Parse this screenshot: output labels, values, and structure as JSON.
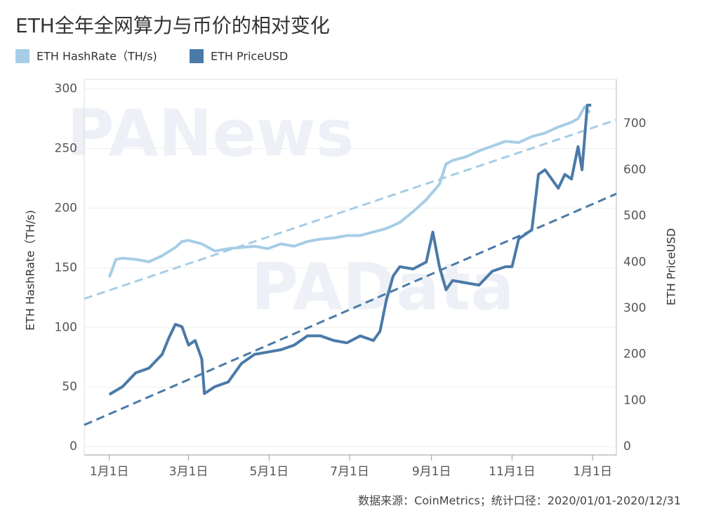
{
  "chart_data": {
    "type": "line",
    "title": "ETH全年全网算力与币价的相对变化",
    "source": "数据来源：CoinMetrics；统计口径：2020/01/01-2020/12/31",
    "watermarks": [
      "PANews",
      "PAData"
    ],
    "y_label": "ETH HashRate（TH/s)",
    "y2_label": "ETH PriceUSD",
    "xlim": [
      -19,
      384
    ],
    "xticks": [
      {
        "value": 0,
        "label": "1月1日"
      },
      {
        "value": 60,
        "label": "3月1日"
      },
      {
        "value": 121,
        "label": "5月1日"
      },
      {
        "value": 182,
        "label": "7月1日"
      },
      {
        "value": 244,
        "label": "9月1日"
      },
      {
        "value": 305,
        "label": "11月1日"
      },
      {
        "value": 366,
        "label": "1月1日"
      }
    ],
    "ylim": [
      -7,
      308
    ],
    "yticks": [
      0,
      50,
      100,
      150,
      200,
      250,
      300
    ],
    "y2lim": [
      -18,
      796
    ],
    "y2ticks": [
      0,
      100,
      200,
      300,
      400,
      500,
      600,
      700
    ],
    "grid": true,
    "series": [
      {
        "name": "ETH HashRate（TH/s)",
        "color": "#a6cde6",
        "x": [
          0,
          5,
          10,
          20,
          30,
          40,
          50,
          55,
          60,
          70,
          80,
          90,
          100,
          110,
          120,
          130,
          140,
          150,
          160,
          170,
          180,
          190,
          200,
          210,
          220,
          230,
          240,
          250,
          255,
          260,
          270,
          280,
          290,
          300,
          310,
          320,
          330,
          340,
          350,
          355,
          360,
          364
        ],
        "values": [
          142,
          157,
          158,
          157,
          155,
          160,
          167,
          172,
          173,
          170,
          164,
          166,
          167,
          168,
          166,
          170,
          168,
          172,
          174,
          175,
          177,
          177,
          180,
          183,
          188,
          197,
          207,
          220,
          237,
          240,
          243,
          248,
          252,
          256,
          255,
          260,
          263,
          268,
          272,
          275,
          285,
          280
        ]
      },
      {
        "name": "ETH PriceUSD",
        "color": "#4a7aa8",
        "axis": "y2",
        "x": [
          0,
          10,
          20,
          30,
          40,
          45,
          50,
          55,
          60,
          65,
          70,
          72,
          80,
          90,
          100,
          110,
          120,
          130,
          140,
          150,
          160,
          170,
          180,
          190,
          200,
          205,
          210,
          215,
          220,
          230,
          240,
          245,
          250,
          255,
          260,
          270,
          280,
          290,
          300,
          305,
          310,
          320,
          325,
          330,
          340,
          345,
          350,
          355,
          358,
          362,
          365
        ],
        "values": [
          113,
          130,
          160,
          170,
          200,
          235,
          265,
          260,
          220,
          230,
          190,
          115,
          130,
          140,
          180,
          200,
          205,
          210,
          220,
          240,
          240,
          230,
          225,
          240,
          230,
          250,
          320,
          370,
          390,
          385,
          400,
          465,
          390,
          340,
          360,
          355,
          350,
          380,
          390,
          390,
          450,
          470,
          590,
          600,
          560,
          590,
          580,
          650,
          600,
          740,
          740
        ]
      }
    ],
    "trendlines": [
      {
        "series": 0,
        "x": [
          -19,
          384
        ],
        "values": [
          124,
          274
        ]
      },
      {
        "series": 1,
        "x": [
          -19,
          384
        ],
        "values": [
          47,
          548
        ]
      }
    ]
  }
}
